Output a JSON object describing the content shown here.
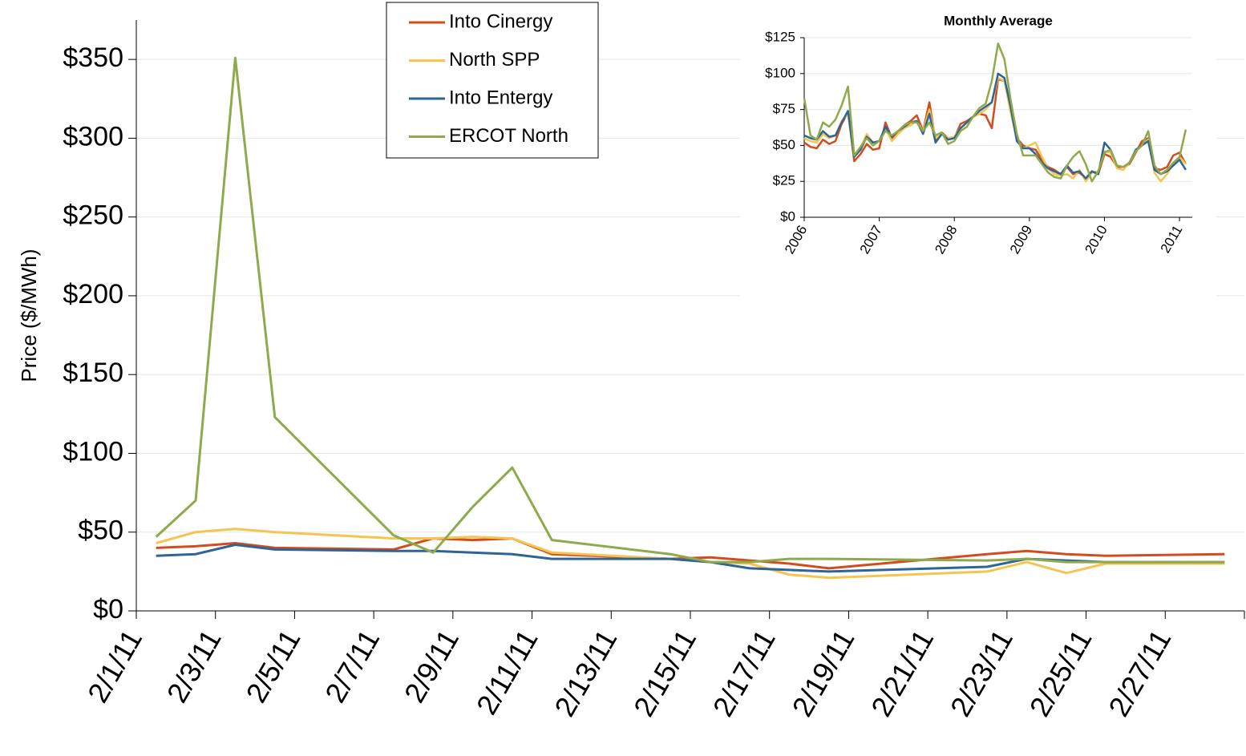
{
  "chart_data": [
    {
      "type": "line",
      "y_label": "Price ($/MWh)",
      "x": [
        "2/1/11",
        "2/2/11",
        "2/3/11",
        "2/4/11",
        "2/7/11",
        "2/8/11",
        "2/9/11",
        "2/10/11",
        "2/11/11",
        "2/14/11",
        "2/15/11",
        "2/16/11",
        "2/17/11",
        "2/18/11",
        "2/22/11",
        "2/23/11",
        "2/24/11",
        "2/25/11",
        "2/28/11"
      ],
      "series": [
        {
          "name": "Into Cinergy",
          "color": "#d24c1f",
          "values": [
            40,
            41,
            43,
            40,
            39,
            46,
            45,
            46,
            36,
            33,
            34,
            32,
            30,
            27,
            36,
            38,
            36,
            35,
            36
          ]
        },
        {
          "name": "North SPP",
          "color": "#f5c451",
          "values": [
            43,
            50,
            52,
            50,
            46,
            46,
            47,
            46,
            37,
            33,
            31,
            30,
            23,
            21,
            25,
            31,
            24,
            30,
            30
          ]
        },
        {
          "name": "Into Entergy",
          "color": "#2e6496",
          "values": [
            35,
            36,
            42,
            39,
            38,
            38,
            37,
            36,
            33,
            33,
            31,
            27,
            26,
            25,
            28,
            33,
            32,
            31,
            31
          ]
        },
        {
          "name": "ERCOT North",
          "color": "#8faa4c",
          "values": [
            47,
            70,
            351,
            123,
            48,
            37,
            66,
            91,
            45,
            36,
            31,
            31,
            33,
            33,
            32,
            33,
            31,
            31,
            31
          ]
        }
      ],
      "xlim": [
        "2/1/11",
        "3/1/11"
      ],
      "xticks": [
        "2/1/11",
        "2/3/11",
        "2/5/11",
        "2/7/11",
        "2/9/11",
        "2/11/11",
        "2/13/11",
        "2/15/11",
        "2/17/11",
        "2/19/11",
        "2/21/11",
        "2/23/11",
        "2/25/11",
        "2/27/11"
      ],
      "ylim": [
        0,
        375
      ],
      "yticks": [
        {
          "value": 0,
          "label": "$0"
        },
        {
          "value": 50,
          "label": "$50"
        },
        {
          "value": 100,
          "label": "$100"
        },
        {
          "value": 150,
          "label": "$150"
        },
        {
          "value": 200,
          "label": "$200"
        },
        {
          "value": 250,
          "label": "$250"
        },
        {
          "value": 300,
          "label": "$300"
        },
        {
          "value": 350,
          "label": "$350"
        }
      ],
      "grid": true,
      "legend": "top"
    },
    {
      "type": "line",
      "title": "Monthly Average",
      "x": [
        2006,
        2006.083,
        2006.167,
        2006.25,
        2006.333,
        2006.417,
        2006.5,
        2006.583,
        2006.667,
        2006.75,
        2006.833,
        2006.917,
        2007,
        2007.083,
        2007.167,
        2007.25,
        2007.333,
        2007.417,
        2007.5,
        2007.583,
        2007.667,
        2007.75,
        2007.833,
        2007.917,
        2008,
        2008.083,
        2008.167,
        2008.25,
        2008.333,
        2008.417,
        2008.5,
        2008.583,
        2008.667,
        2008.75,
        2008.833,
        2008.917,
        2009,
        2009.083,
        2009.167,
        2009.25,
        2009.333,
        2009.417,
        2009.5,
        2009.583,
        2009.667,
        2009.75,
        2009.833,
        2009.917,
        2010,
        2010.083,
        2010.167,
        2010.25,
        2010.333,
        2010.417,
        2010.5,
        2010.583,
        2010.667,
        2010.75,
        2010.833,
        2010.917,
        2011,
        2011.083
      ],
      "series": [
        {
          "color": "#d24c1f",
          "values": [
            52,
            49,
            48,
            54,
            51,
            53,
            65,
            73,
            39,
            44,
            51,
            47,
            48,
            66,
            55,
            60,
            64,
            67,
            71,
            60,
            80,
            53,
            59,
            55,
            55,
            65,
            67,
            70,
            72,
            71,
            62,
            96,
            95,
            75,
            55,
            50,
            48,
            47,
            40,
            35,
            33,
            30,
            35,
            30,
            31,
            27,
            32,
            30,
            44,
            42,
            35,
            35,
            37,
            45,
            53,
            55,
            34,
            33,
            35,
            43,
            45,
            37
          ]
        },
        {
          "color": "#f5c451",
          "values": [
            55,
            53,
            52,
            58,
            55,
            57,
            67,
            72,
            42,
            48,
            58,
            52,
            53,
            62,
            53,
            58,
            62,
            64,
            67,
            60,
            75,
            55,
            58,
            55,
            56,
            62,
            66,
            70,
            72,
            75,
            80,
            97,
            95,
            73,
            54,
            48,
            50,
            52,
            42,
            34,
            30,
            29,
            30,
            27,
            33,
            25,
            31,
            32,
            46,
            45,
            34,
            33,
            38,
            46,
            50,
            54,
            31,
            25,
            30,
            37,
            42,
            37
          ]
        },
        {
          "color": "#2e6496",
          "values": [
            57,
            55,
            54,
            60,
            56,
            57,
            66,
            74,
            42,
            47,
            56,
            52,
            53,
            63,
            56,
            60,
            63,
            66,
            67,
            58,
            72,
            52,
            58,
            54,
            55,
            62,
            66,
            70,
            74,
            77,
            80,
            100,
            97,
            77,
            53,
            48,
            48,
            44,
            38,
            34,
            32,
            30,
            36,
            31,
            32,
            27,
            32,
            30,
            52,
            47,
            36,
            35,
            38,
            47,
            50,
            53,
            33,
            30,
            32,
            36,
            40,
            33
          ]
        },
        {
          "color": "#8faa4c",
          "values": [
            83,
            57,
            54,
            66,
            63,
            68,
            78,
            91,
            43,
            49,
            55,
            50,
            53,
            60,
            57,
            60,
            64,
            66,
            66,
            60,
            66,
            57,
            59,
            51,
            53,
            60,
            63,
            70,
            76,
            79,
            95,
            121,
            110,
            82,
            58,
            43,
            43,
            43,
            37,
            31,
            28,
            27,
            36,
            42,
            46,
            37,
            25,
            32,
            45,
            47,
            36,
            35,
            38,
            46,
            50,
            60,
            36,
            30,
            33,
            38,
            42,
            61
          ]
        }
      ],
      "xlim": [
        2006,
        2011.17
      ],
      "xticks": [
        2006,
        2007,
        2008,
        2009,
        2010,
        2011
      ],
      "ylim": [
        0,
        125
      ],
      "yticks": [
        {
          "value": 0,
          "label": "$0"
        },
        {
          "value": 25,
          "label": "$25"
        },
        {
          "value": 50,
          "label": "$50"
        },
        {
          "value": 75,
          "label": "$75"
        },
        {
          "value": 100,
          "label": "$100"
        },
        {
          "value": 125,
          "label": "$125"
        }
      ],
      "grid": true
    }
  ]
}
